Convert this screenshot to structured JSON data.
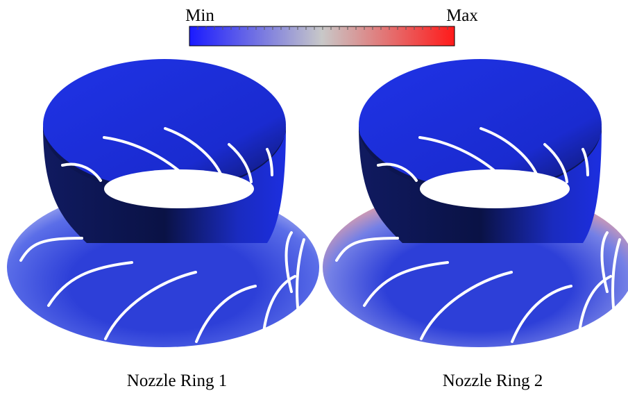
{
  "colorbar": {
    "min_label": "Min",
    "max_label": "Max"
  },
  "panels": [
    {
      "caption": "Nozzle Ring 1"
    },
    {
      "caption": "Nozzle Ring 2"
    }
  ]
}
